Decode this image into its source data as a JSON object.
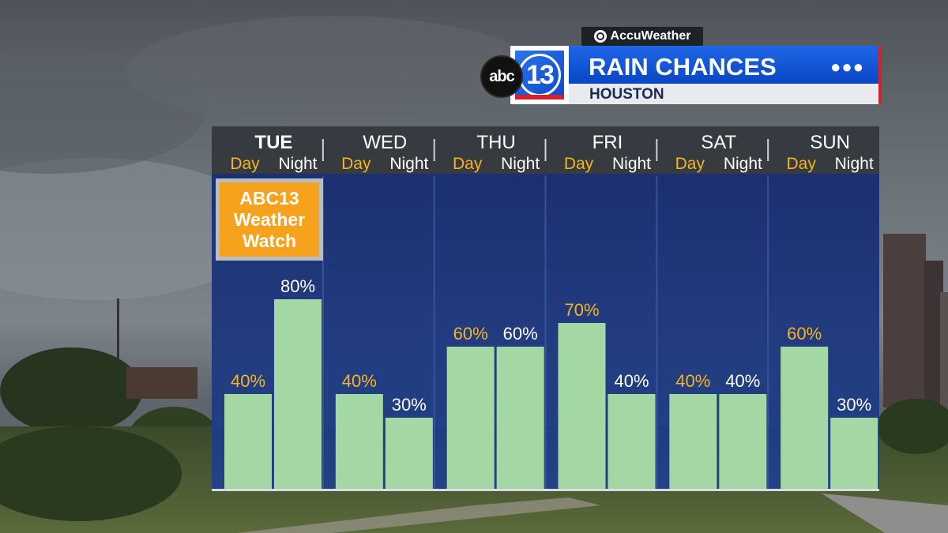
{
  "branding": {
    "provider": "AccuWeather",
    "network_logo": "abc",
    "station_logo": "13",
    "title": "RAIN CHANCES",
    "subtitle": "HOUSTON",
    "menu_icon": "ellipsis-icon"
  },
  "badge": {
    "text_lines": [
      "ABC13",
      "Weather",
      "Watch"
    ],
    "color": "#f6a21c"
  },
  "chart_data": {
    "type": "bar",
    "days": [
      "TUE",
      "WED",
      "THU",
      "FRI",
      "SAT",
      "SUN"
    ],
    "day_emphasis": "TUE",
    "periods": [
      "Day",
      "Night"
    ],
    "series": [
      {
        "name": "Day",
        "values": [
          40,
          40,
          60,
          70,
          40,
          60
        ]
      },
      {
        "name": "Night",
        "values": [
          80,
          30,
          60,
          40,
          40,
          30
        ]
      }
    ],
    "unit": "%",
    "ylim": [
      0,
      100
    ],
    "colors": {
      "bar": "#a3d7a4",
      "day_label": "#f5b51e",
      "night_label": "#ffffff",
      "header_bg": "#34373c",
      "body_bg": "#1c3a88"
    },
    "grid": "vertical separators between days"
  }
}
